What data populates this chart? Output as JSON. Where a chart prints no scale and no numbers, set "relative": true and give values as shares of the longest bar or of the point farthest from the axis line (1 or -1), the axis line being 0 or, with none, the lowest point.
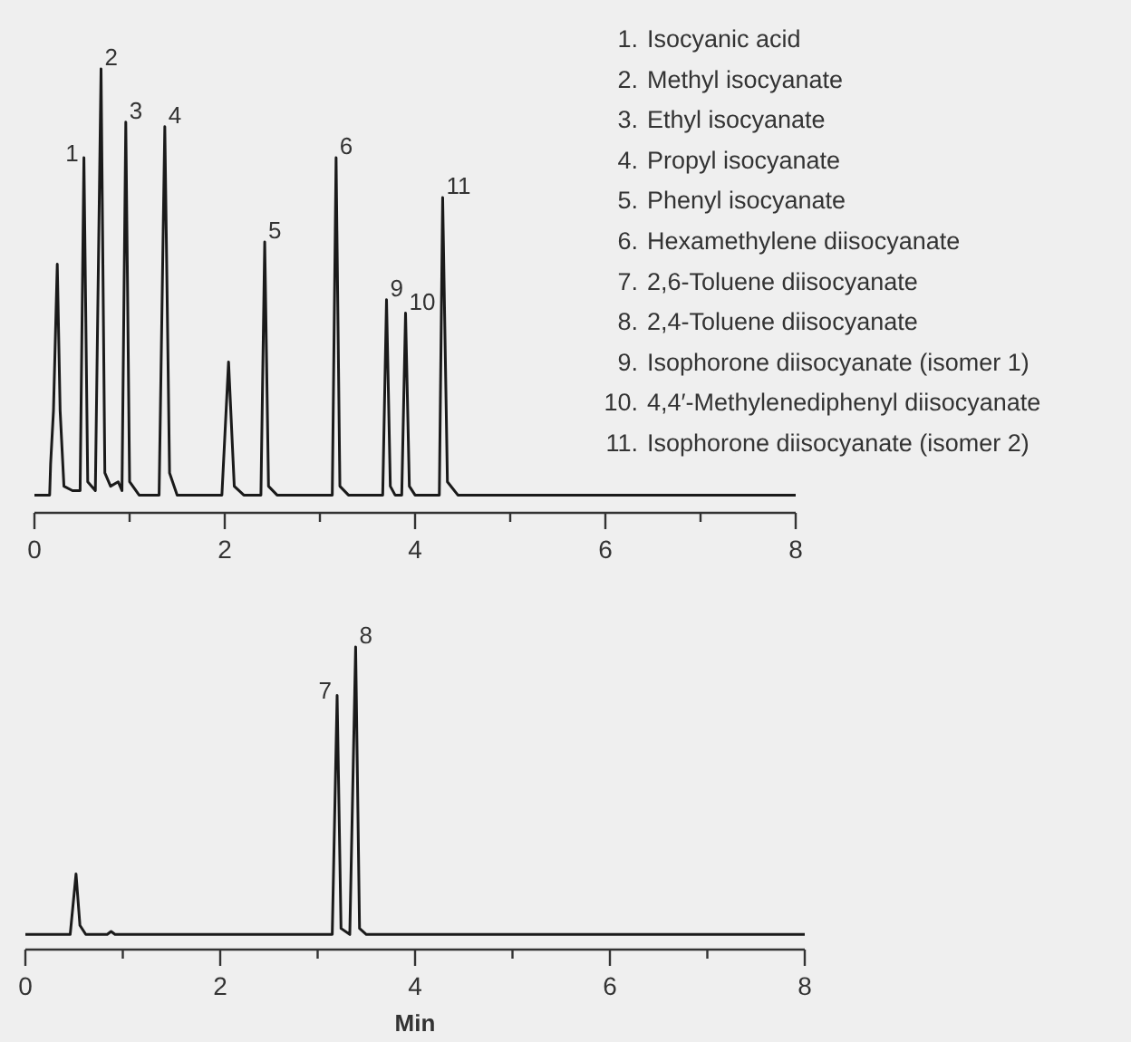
{
  "chart_data": [
    {
      "type": "line",
      "relative": true,
      "xlim": [
        0,
        8
      ],
      "xticks": [
        0,
        {
          "value": 1,
          "label": null
        },
        2,
        {
          "value": 3,
          "label": null
        },
        4,
        {
          "value": 5,
          "label": null
        },
        6,
        {
          "value": 7,
          "label": null
        },
        8
      ],
      "grid": false,
      "series": [
        {
          "color": "#1a1a1a",
          "x": [
            0,
            0.16,
            0.17,
            0.2,
            0.24,
            0.27,
            0.31,
            0.4,
            0.48,
            0.52,
            0.56,
            0.64,
            0.7,
            0.74,
            0.8,
            0.88,
            0.92,
            0.96,
            1.0,
            1.1,
            1.31,
            1.37,
            1.42,
            1.5,
            1.97,
            2.04,
            2.1,
            2.2,
            2.38,
            2.42,
            2.46,
            2.55,
            3.13,
            3.17,
            3.21,
            3.3,
            3.66,
            3.7,
            3.74,
            3.79,
            3.86,
            3.9,
            3.94,
            4.0,
            4.255,
            4.29,
            4.34,
            4.45,
            8
          ],
          "values": [
            0.04,
            0.04,
            0.11,
            0.23,
            0.56,
            0.23,
            0.06,
            0.05,
            0.05,
            0.8,
            0.07,
            0.05,
            1.0,
            0.09,
            0.06,
            0.07,
            0.05,
            0.88,
            0.07,
            0.04,
            0.04,
            0.87,
            0.09,
            0.04,
            0.04,
            0.34,
            0.06,
            0.04,
            0.04,
            0.61,
            0.06,
            0.04,
            0.04,
            0.8,
            0.06,
            0.04,
            0.04,
            0.48,
            0.06,
            0.04,
            0.04,
            0.45,
            0.06,
            0.04,
            0.04,
            0.71,
            0.07,
            0.04,
            0.04
          ]
        }
      ],
      "annotations": [
        {
          "text": "1",
          "x": 0.52,
          "y": 0.8
        },
        {
          "text": "2",
          "x": 0.7,
          "y": 1.0
        },
        {
          "text": "3",
          "x": 0.96,
          "y": 0.88
        },
        {
          "text": "4",
          "x": 1.37,
          "y": 0.87
        },
        {
          "text": "5",
          "x": 2.42,
          "y": 0.61
        },
        {
          "text": "6",
          "x": 3.17,
          "y": 0.8
        },
        {
          "text": "9",
          "x": 3.7,
          "y": 0.48
        },
        {
          "text": "10",
          "x": 3.9,
          "y": 0.45
        },
        {
          "text": "11",
          "x": 4.29,
          "y": 0.71
        },
        "1. Isocyanic acid",
        "2. Methyl isocyanate",
        "3. Ethyl isocyanate",
        "4. Propyl isocyanate",
        "5. Phenyl isocyanate",
        "6. Hexamethylene diisocyanate",
        "7. 2,6-Toluene diisocyanate",
        "8. 2,4-Toluene diisocyanate",
        "9. Isophorone diisocyanate (isomer 1)",
        "10. 4,4′-Methylenediphenyl diisocyanate",
        "11. Isophorone diisocyanate (isomer 2)"
      ]
    },
    {
      "type": "line",
      "relative": true,
      "xlabel": "Min",
      "xlim": [
        0,
        8
      ],
      "xticks": [
        0,
        {
          "value": 1,
          "label": null
        },
        2,
        {
          "value": 3,
          "label": null
        },
        4,
        {
          "value": 5,
          "label": null
        },
        6,
        {
          "value": 7,
          "label": null
        },
        8
      ],
      "grid": false,
      "series": [
        {
          "color": "#1a1a1a",
          "x": [
            0,
            0.46,
            0.52,
            0.56,
            0.62,
            0.84,
            0.88,
            0.92,
            3.15,
            3.2,
            3.24,
            3.33,
            3.39,
            3.43,
            3.5,
            8
          ],
          "values": [
            0.05,
            0.05,
            0.25,
            0.08,
            0.05,
            0.05,
            0.06,
            0.05,
            0.05,
            0.84,
            0.07,
            0.05,
            1.0,
            0.07,
            0.05,
            0.05
          ]
        }
      ],
      "annotations": [
        {
          "text": "7",
          "x": 3.2,
          "y": 0.84
        },
        {
          "text": "8",
          "x": 3.39,
          "y": 1.0
        }
      ]
    }
  ]
}
